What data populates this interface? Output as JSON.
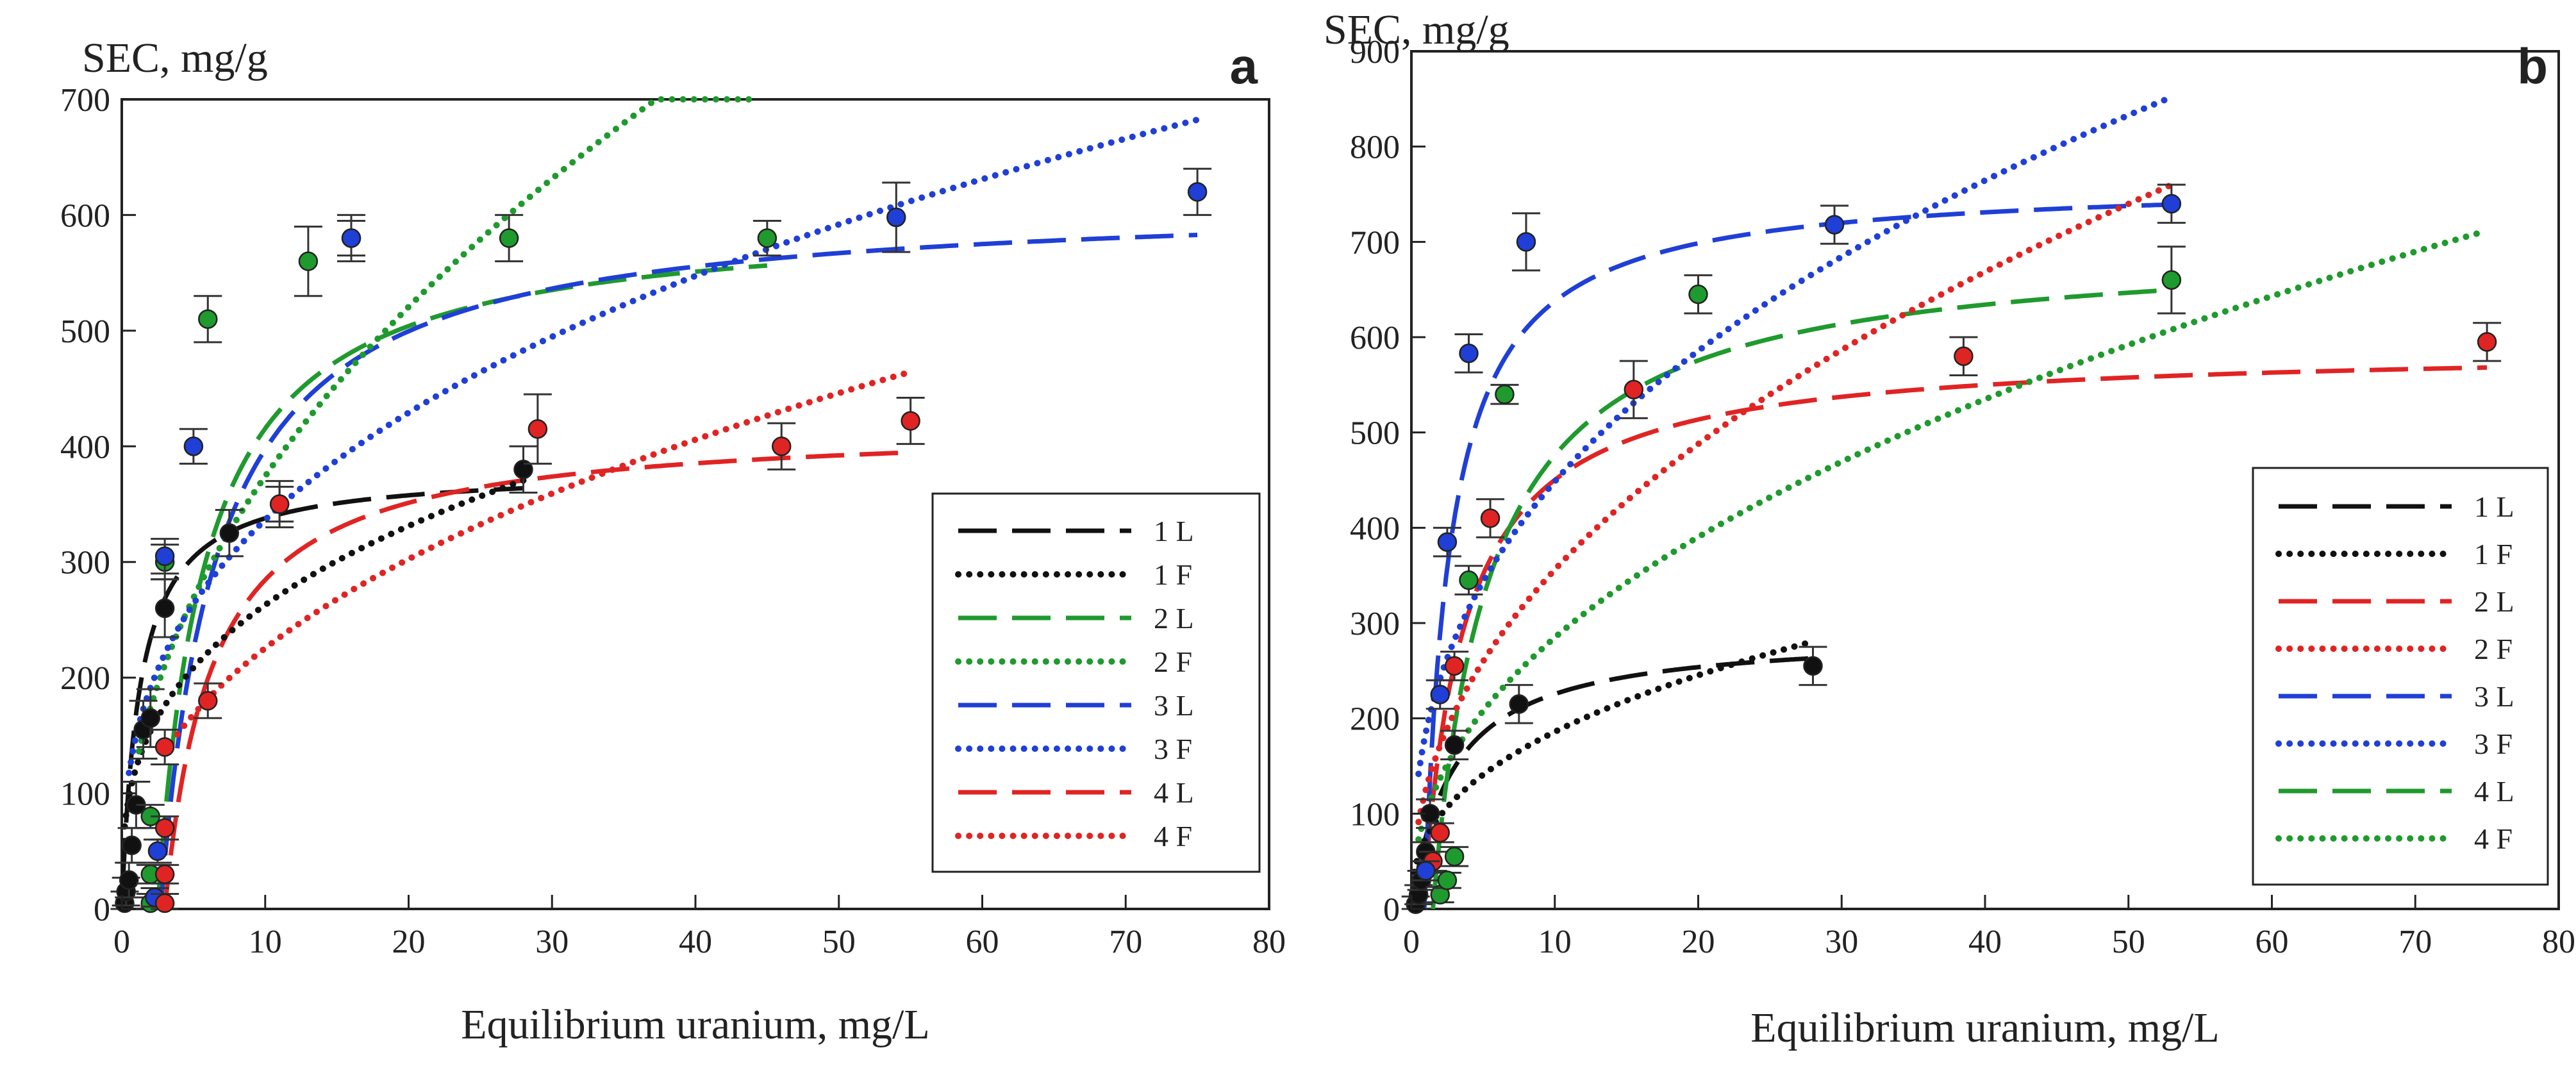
{
  "figure": {
    "ylabel": "SEC, mg/g",
    "xlabel": "Equilibrium uranium, mg/L"
  },
  "colors": {
    "black": "#111111",
    "green": "#1f9a2e",
    "blue": "#1f3fd6",
    "red": "#e02424"
  },
  "chart_data": [
    {
      "type": "scatter",
      "panel": "a",
      "title": "",
      "xlabel": "Equilibrium uranium, mg/L",
      "ylabel": "SEC, mg/g",
      "xlim": [
        0,
        80
      ],
      "ylim": [
        0,
        700
      ],
      "xticks": [
        "0",
        "10",
        "20",
        "30",
        "40",
        "50",
        "60",
        "70",
        "80"
      ],
      "yticks": [
        "0",
        "100",
        "200",
        "300",
        "400",
        "500",
        "600",
        "700"
      ],
      "legend_position": "lower-right",
      "legend": [
        {
          "label": "1 L",
          "color": "black",
          "style": "dash"
        },
        {
          "label": "1 F",
          "color": "black",
          "style": "dot"
        },
        {
          "label": "2 L",
          "color": "green",
          "style": "dash"
        },
        {
          "label": "2 F",
          "color": "green",
          "style": "dot"
        },
        {
          "label": "3 L",
          "color": "blue",
          "style": "dash"
        },
        {
          "label": "3 F",
          "color": "blue",
          "style": "dot"
        },
        {
          "label": "4 L",
          "color": "red",
          "style": "dash"
        },
        {
          "label": "4 F",
          "color": "red",
          "style": "dot"
        }
      ],
      "series": [
        {
          "name": "1",
          "color": "black",
          "points": [
            [
              0.2,
              5,
              10
            ],
            [
              0.3,
              15,
              12
            ],
            [
              0.5,
              25,
              15
            ],
            [
              0.7,
              55,
              15
            ],
            [
              1.0,
              90,
              20
            ],
            [
              1.5,
              155,
              25
            ],
            [
              2.0,
              165,
              25
            ],
            [
              3.0,
              260,
              25
            ],
            [
              7.5,
              325,
              20
            ],
            [
              28,
              380,
              20
            ]
          ]
        },
        {
          "name": "2",
          "color": "green",
          "points": [
            [
              2.0,
              5,
              8
            ],
            [
              2.0,
              30,
              8
            ],
            [
              2.0,
              80,
              10
            ],
            [
              3.0,
              300,
              15
            ],
            [
              6.0,
              510,
              20
            ],
            [
              13,
              560,
              30
            ],
            [
              16,
              580,
              15
            ],
            [
              27,
              580,
              20
            ],
            [
              45,
              580,
              15
            ]
          ]
        },
        {
          "name": "3",
          "color": "blue",
          "points": [
            [
              2.3,
              10,
              8
            ],
            [
              2.5,
              50,
              10
            ],
            [
              3.0,
              305,
              15
            ],
            [
              5.0,
              400,
              15
            ],
            [
              11,
              350,
              15
            ],
            [
              16,
              580,
              20
            ],
            [
              54,
              598,
              30
            ],
            [
              75,
              620,
              20
            ]
          ]
        },
        {
          "name": "4",
          "color": "red",
          "points": [
            [
              3.0,
              5,
              8
            ],
            [
              3.0,
              30,
              8
            ],
            [
              3.0,
              70,
              10
            ],
            [
              3.0,
              140,
              15
            ],
            [
              6.0,
              180,
              15
            ],
            [
              11,
              350,
              20
            ],
            [
              29,
              415,
              30
            ],
            [
              46,
              400,
              20
            ],
            [
              55,
              422,
              20
            ]
          ]
        }
      ],
      "curves": {
        "langmuir": [
          {
            "name": "1 L",
            "color": "black",
            "qmax": 380,
            "K": 0.8,
            "xmin": 0.1,
            "xmax": 28
          },
          {
            "name": "2 L",
            "color": "green",
            "qmax": 600,
            "K": 0.3,
            "xmin": 2.5,
            "xmax": 45,
            "shift": 2.5
          },
          {
            "name": "3 L",
            "color": "blue",
            "qmax": 615,
            "K": 0.25,
            "xmin": 2.7,
            "xmax": 75,
            "shift": 2.7
          },
          {
            "name": "4 L",
            "color": "red",
            "qmax": 420,
            "K": 0.3,
            "xmin": 3.0,
            "xmax": 55,
            "shift": 3.0
          }
        ],
        "freundlich": [
          {
            "name": "1 F",
            "color": "black",
            "kf": 122,
            "n": 3.0,
            "xmin": 0.2,
            "xmax": 28
          },
          {
            "name": "2 F",
            "color": "green",
            "kf": 125,
            "n": 2.1,
            "xmin": 1.2,
            "xmax": 44
          },
          {
            "name": "3 F",
            "color": "blue",
            "kf": 150,
            "n": 2.85,
            "xmin": 0.5,
            "xmax": 75
          },
          {
            "name": "4 F",
            "color": "red",
            "kf": 85,
            "n": 2.36,
            "xmin": 3.0,
            "xmax": 55
          }
        ]
      }
    },
    {
      "type": "scatter",
      "panel": "b",
      "title": "",
      "xlabel": "Equilibrium uranium, mg/L",
      "ylabel": "SEC, mg/g",
      "xlim": [
        0,
        80
      ],
      "ylim": [
        0,
        900
      ],
      "xticks": [
        "0",
        "10",
        "20",
        "30",
        "40",
        "50",
        "60",
        "70",
        "80"
      ],
      "yticks": [
        "0",
        "100",
        "200",
        "300",
        "400",
        "500",
        "600",
        "700",
        "800",
        "900"
      ],
      "legend_position": "lower-right",
      "legend": [
        {
          "label": "1 L",
          "color": "black",
          "style": "dash"
        },
        {
          "label": "1 F",
          "color": "black",
          "style": "dot"
        },
        {
          "label": "2 L",
          "color": "red",
          "style": "dash"
        },
        {
          "label": "2 F",
          "color": "red",
          "style": "dot"
        },
        {
          "label": "3 L",
          "color": "blue",
          "style": "dash"
        },
        {
          "label": "3 F",
          "color": "blue",
          "style": "dot"
        },
        {
          "label": "4 L",
          "color": "green",
          "style": "dash"
        },
        {
          "label": "4 F",
          "color": "green",
          "style": "dot"
        }
      ],
      "series": [
        {
          "name": "1",
          "color": "black",
          "points": [
            [
              0.3,
              5,
              8
            ],
            [
              0.5,
              15,
              10
            ],
            [
              0.7,
              30,
              10
            ],
            [
              1.0,
              60,
              10
            ],
            [
              1.3,
              100,
              15
            ],
            [
              3.0,
              172,
              15
            ],
            [
              7.5,
              215,
              20
            ],
            [
              28,
              255,
              20
            ]
          ]
        },
        {
          "name": "2",
          "color": "red",
          "points": [
            [
              1.5,
              50,
              10
            ],
            [
              2.0,
              80,
              10
            ],
            [
              3.0,
              255,
              15
            ],
            [
              5.5,
              410,
              20
            ],
            [
              15.5,
              545,
              30
            ],
            [
              38.5,
              580,
              20
            ],
            [
              75,
              595,
              20
            ]
          ]
        },
        {
          "name": "3",
          "color": "blue",
          "points": [
            [
              1.0,
              40,
              10
            ],
            [
              2.0,
              225,
              15
            ],
            [
              2.5,
              385,
              15
            ],
            [
              4.0,
              583,
              20
            ],
            [
              8.0,
              700,
              30
            ],
            [
              29.5,
              718,
              20
            ],
            [
              53,
              740,
              20
            ]
          ]
        },
        {
          "name": "4",
          "color": "green",
          "points": [
            [
              2.0,
              15,
              8
            ],
            [
              2.5,
              30,
              8
            ],
            [
              3.0,
              55,
              10
            ],
            [
              4.0,
              345,
              15
            ],
            [
              6.5,
              540,
              10
            ],
            [
              20,
              645,
              20
            ],
            [
              53,
              660,
              35
            ]
          ]
        }
      ],
      "curves": {
        "langmuir": [
          {
            "name": "1 L",
            "color": "black",
            "qmax": 290,
            "K": 0.35,
            "xmin": 0.1,
            "xmax": 28
          },
          {
            "name": "2 L",
            "color": "red",
            "qmax": 590,
            "K": 0.35,
            "xmin": 0.8,
            "xmax": 75,
            "shift": 0.8
          },
          {
            "name": "3 L",
            "color": "blue",
            "qmax": 765,
            "K": 0.55,
            "xmin": 0.9,
            "xmax": 53,
            "shift": 0.9
          },
          {
            "name": "4 L",
            "color": "green",
            "qmax": 700,
            "K": 0.25,
            "xmin": 1.5,
            "xmax": 53,
            "shift": 1.5
          }
        ],
        "freundlich": [
          {
            "name": "1 F",
            "color": "black",
            "kf": 74,
            "n": 2.5,
            "xmin": 0.2,
            "xmax": 27.5
          },
          {
            "name": "2 F",
            "color": "red",
            "kf": 125,
            "n": 2.2,
            "xmin": 0.5,
            "xmax": 53
          },
          {
            "name": "3 F",
            "color": "blue",
            "kf": 185,
            "n": 2.6,
            "xmin": 0.5,
            "xmax": 53
          },
          {
            "name": "4 F",
            "color": "green",
            "kf": 100,
            "n": 2.2,
            "xmin": 0.5,
            "xmax": 75
          }
        ]
      }
    }
  ]
}
